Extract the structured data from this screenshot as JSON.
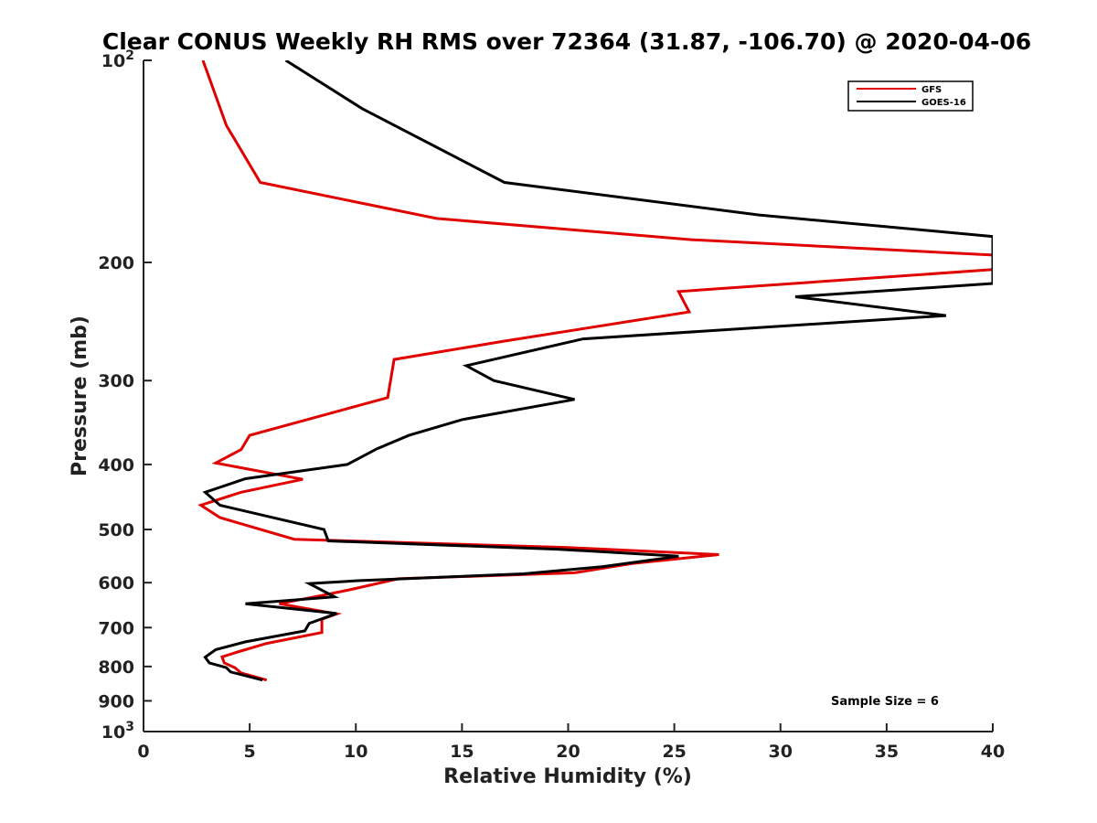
{
  "chart_data": {
    "type": "line",
    "title": "Clear CONUS Weekly RH RMS over 72364 (31.87, -106.70) @ 2020-04-06",
    "xlabel": "Relative Humidity (%)",
    "ylabel": "Pressure (mb)",
    "xlim": [
      0,
      40
    ],
    "ylim": [
      100,
      1000
    ],
    "yscale": "log",
    "y_reversed": true,
    "grid": false,
    "legend_position": "top-right",
    "xticks": [
      0,
      5,
      10,
      15,
      20,
      25,
      30,
      35,
      40
    ],
    "yticks": [
      {
        "value": 100,
        "base": "10",
        "exp": "2"
      },
      {
        "value": 200,
        "label": "200"
      },
      {
        "value": 300,
        "label": "300"
      },
      {
        "value": 400,
        "label": "400"
      },
      {
        "value": 500,
        "label": "500"
      },
      {
        "value": 600,
        "label": "600"
      },
      {
        "value": 700,
        "label": "700"
      },
      {
        "value": 800,
        "label": "800"
      },
      {
        "value": 900,
        "label": "900"
      },
      {
        "value": 1000,
        "base": "10",
        "exp": "3"
      }
    ],
    "annotation": "Sample Size = 6",
    "series": [
      {
        "name": "GFS",
        "color": "#e00000",
        "points": [
          [
            2.8,
            100
          ],
          [
            3.9,
            125
          ],
          [
            5.5,
            152
          ],
          [
            13.8,
            172
          ],
          [
            25.8,
            185
          ],
          [
            40.0,
            195
          ],
          [
            40.0,
            205
          ],
          [
            25.2,
            221
          ],
          [
            25.7,
            237
          ],
          [
            17.0,
            262
          ],
          [
            11.8,
            279
          ],
          [
            11.5,
            318
          ],
          [
            5.0,
            362
          ],
          [
            4.6,
            380
          ],
          [
            3.4,
            398
          ],
          [
            7.5,
            421
          ],
          [
            4.6,
            440
          ],
          [
            2.7,
            460
          ],
          [
            3.6,
            480
          ],
          [
            7.1,
            517
          ],
          [
            20.0,
            532
          ],
          [
            27.1,
            545
          ],
          [
            23.0,
            562
          ],
          [
            20.3,
            580
          ],
          [
            12.0,
            592
          ],
          [
            9.7,
            615
          ],
          [
            8.5,
            626
          ],
          [
            6.4,
            645
          ],
          [
            9.1,
            668
          ],
          [
            8.4,
            680
          ],
          [
            8.4,
            712
          ],
          [
            5.8,
            739
          ],
          [
            4.5,
            760
          ],
          [
            3.7,
            774
          ],
          [
            3.8,
            790
          ],
          [
            4.3,
            803
          ],
          [
            4.6,
            818
          ],
          [
            5.8,
            838
          ]
        ]
      },
      {
        "name": "GOES-16",
        "color": "#000000",
        "points": [
          [
            6.7,
            100
          ],
          [
            10.3,
            118
          ],
          [
            17.0,
            152
          ],
          [
            29.0,
            170
          ],
          [
            40.0,
            183
          ],
          [
            40.0,
            215
          ],
          [
            30.7,
            225
          ],
          [
            37.8,
            240
          ],
          [
            20.7,
            260
          ],
          [
            15.2,
            285
          ],
          [
            16.5,
            300
          ],
          [
            20.3,
            320
          ],
          [
            15.0,
            343
          ],
          [
            12.5,
            362
          ],
          [
            11.0,
            379
          ],
          [
            9.6,
            400
          ],
          [
            4.8,
            420
          ],
          [
            2.9,
            440
          ],
          [
            3.6,
            460
          ],
          [
            8.5,
            500
          ],
          [
            8.7,
            520
          ],
          [
            19.5,
            535
          ],
          [
            25.2,
            548
          ],
          [
            21.6,
            568
          ],
          [
            17.9,
            582
          ],
          [
            10.1,
            596
          ],
          [
            7.8,
            602
          ],
          [
            9.0,
            630
          ],
          [
            4.8,
            645
          ],
          [
            9.1,
            667
          ],
          [
            7.8,
            690
          ],
          [
            7.6,
            708
          ],
          [
            4.8,
            735
          ],
          [
            3.4,
            755
          ],
          [
            2.9,
            775
          ],
          [
            3.1,
            790
          ],
          [
            3.9,
            803
          ],
          [
            4.1,
            815
          ],
          [
            5.6,
            838
          ]
        ]
      }
    ]
  }
}
